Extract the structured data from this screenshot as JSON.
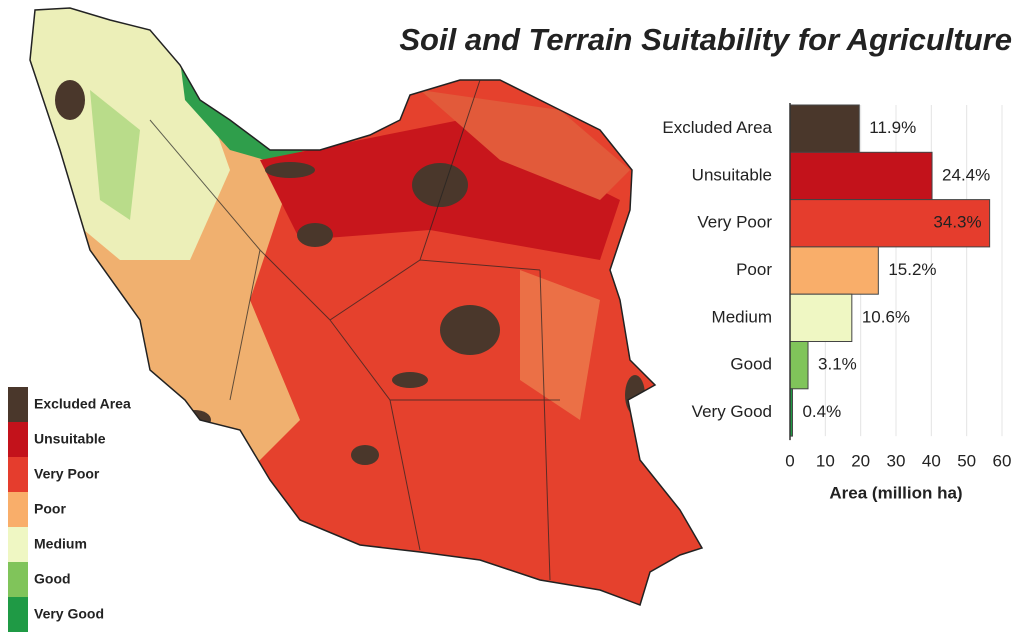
{
  "chart_data": {
    "type": "bar",
    "orientation": "horizontal",
    "title": "Soil and Terrain Suitability for Agriculture",
    "categories": [
      "Excluded Area",
      "Unsuitable",
      "Very Poor",
      "Poor",
      "Medium",
      "Good",
      "Very Good"
    ],
    "values": [
      19.6,
      40.2,
      56.5,
      25,
      17.5,
      5.1,
      0.7
    ],
    "value_labels": [
      "11.9%",
      "24.4%",
      "34.3%",
      "15.2%",
      "10.6%",
      "3.1%",
      "0.4%"
    ],
    "colors": [
      "#4a372b",
      "#c3121b",
      "#e53d2d",
      "#f9ae6a",
      "#eff7c3",
      "#80c45a",
      "#1f9a45"
    ],
    "xlim": [
      0,
      60
    ],
    "xticks": [
      0,
      10,
      20,
      30,
      40,
      50,
      60
    ],
    "xlabel": "Area (million ha)"
  }
}
